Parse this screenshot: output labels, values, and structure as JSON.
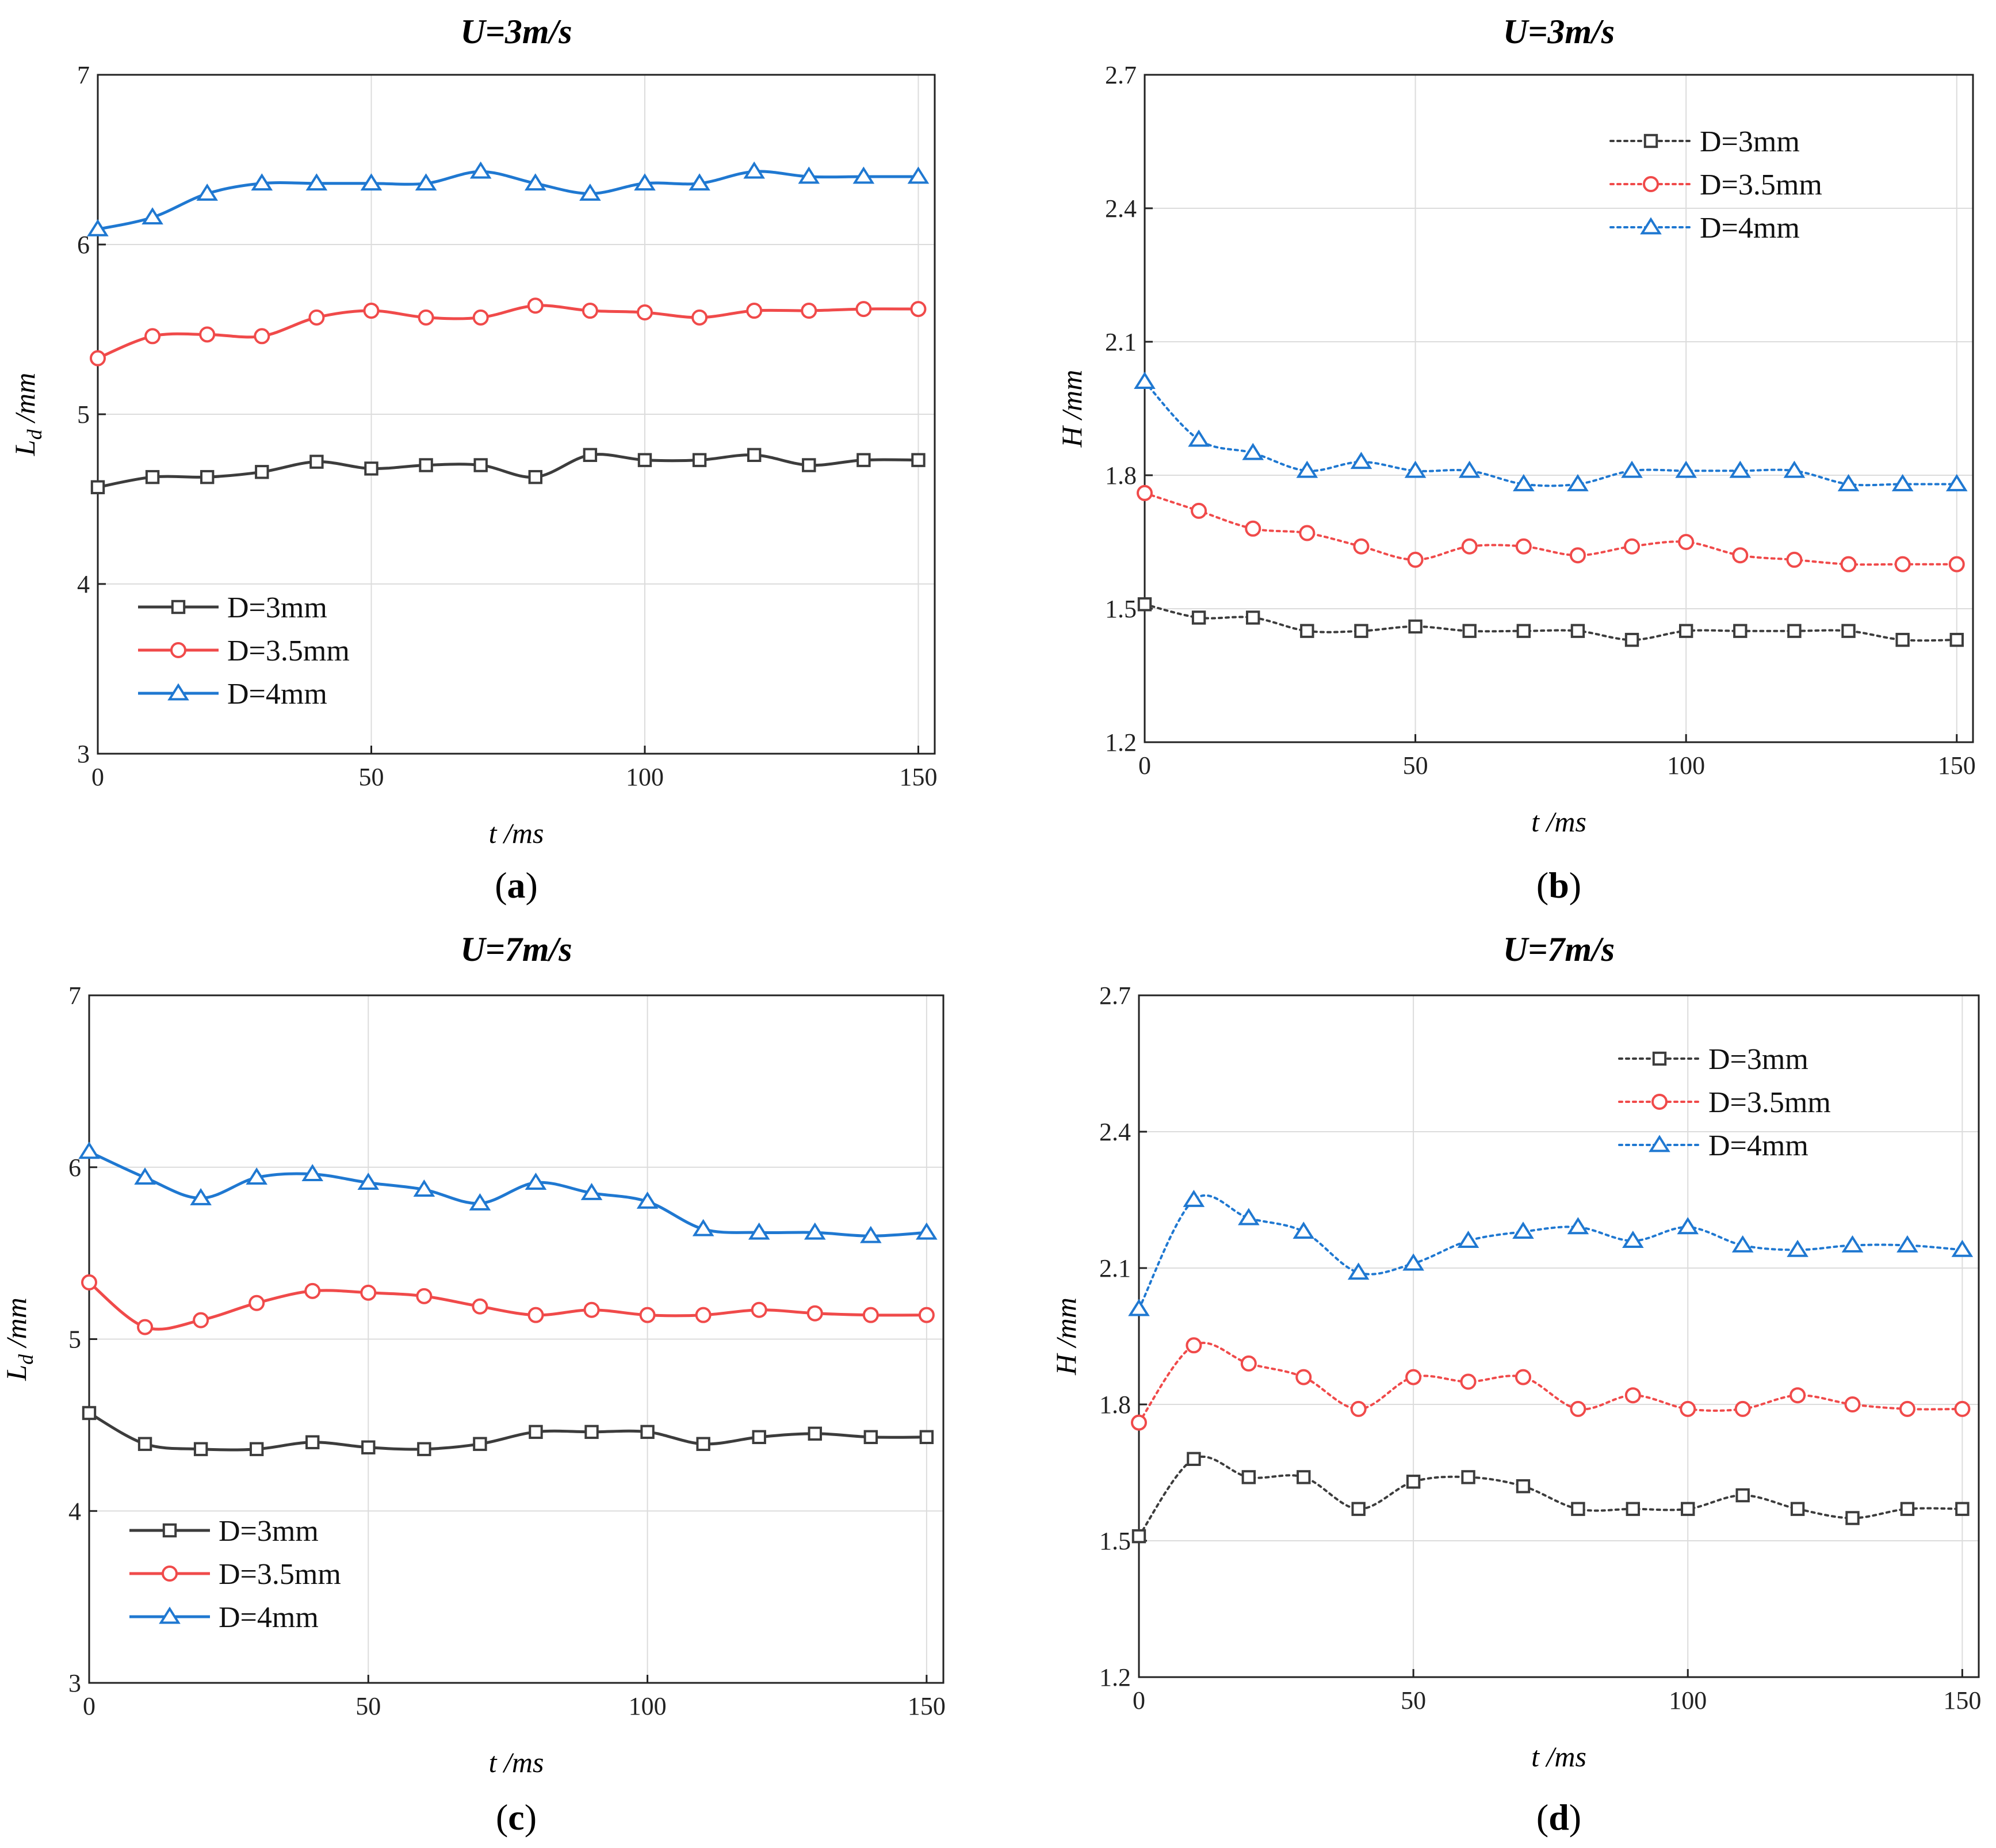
{
  "chart_data": [
    {
      "id": "a",
      "type": "line",
      "panel_label": "a",
      "title": "U=3m/s",
      "xlabel": "t /ms",
      "ylabel": "L",
      "ylabel_sub": "d",
      "ylabel_unit": " /mm",
      "xlim": [
        0,
        153
      ],
      "ylim": [
        3,
        7
      ],
      "xticks": [
        0,
        50,
        100,
        150
      ],
      "yticks": [
        3,
        4,
        5,
        6,
        7
      ],
      "grid": true,
      "legend_position": "bottom-left",
      "x": [
        0,
        10,
        20,
        30,
        40,
        50,
        60,
        70,
        80,
        90,
        100,
        110,
        120,
        130,
        140,
        150
      ],
      "series": [
        {
          "name": "D=3mm",
          "color": "#3c3c3c",
          "marker": "square",
          "line": "solid",
          "values": [
            4.57,
            4.63,
            4.63,
            4.66,
            4.72,
            4.68,
            4.7,
            4.7,
            4.63,
            4.76,
            4.73,
            4.73,
            4.76,
            4.7,
            4.73,
            4.73
          ]
        },
        {
          "name": "D=3.5mm",
          "color": "#f04a4a",
          "marker": "circle",
          "line": "solid",
          "values": [
            5.33,
            5.46,
            5.47,
            5.46,
            5.57,
            5.61,
            5.57,
            5.57,
            5.64,
            5.61,
            5.6,
            5.57,
            5.61,
            5.61,
            5.62,
            5.62
          ]
        },
        {
          "name": "D=4mm",
          "color": "#1f78d1",
          "marker": "triangle",
          "line": "solid",
          "values": [
            6.09,
            6.16,
            6.3,
            6.36,
            6.36,
            6.36,
            6.36,
            6.43,
            6.36,
            6.3,
            6.36,
            6.36,
            6.43,
            6.4,
            6.4,
            6.4
          ]
        }
      ]
    },
    {
      "id": "b",
      "type": "line",
      "panel_label": "b",
      "title": "U=3m/s",
      "xlabel": "t /ms",
      "ylabel": "H",
      "ylabel_sub": "",
      "ylabel_unit": " /mm",
      "xlim": [
        0,
        153
      ],
      "ylim": [
        1.2,
        2.7
      ],
      "xticks": [
        0,
        50,
        100,
        150
      ],
      "yticks": [
        1.2,
        1.5,
        1.8,
        2.1,
        2.4,
        2.7
      ],
      "grid": true,
      "legend_position": "top-right",
      "x": [
        0,
        10,
        20,
        30,
        40,
        50,
        60,
        70,
        80,
        90,
        100,
        110,
        120,
        130,
        140,
        150
      ],
      "series": [
        {
          "name": "D=3mm",
          "color": "#3c3c3c",
          "marker": "square",
          "line": "dotted",
          "values": [
            1.51,
            1.48,
            1.48,
            1.45,
            1.45,
            1.46,
            1.45,
            1.45,
            1.45,
            1.43,
            1.45,
            1.45,
            1.45,
            1.45,
            1.43,
            1.43
          ]
        },
        {
          "name": "D=3.5mm",
          "color": "#f04a4a",
          "marker": "circle",
          "line": "dotted",
          "values": [
            1.76,
            1.72,
            1.68,
            1.67,
            1.64,
            1.61,
            1.64,
            1.64,
            1.62,
            1.64,
            1.65,
            1.62,
            1.61,
            1.6,
            1.6,
            1.6
          ]
        },
        {
          "name": "D=4mm",
          "color": "#1f78d1",
          "marker": "triangle",
          "line": "dotted",
          "values": [
            2.01,
            1.88,
            1.85,
            1.81,
            1.83,
            1.81,
            1.81,
            1.78,
            1.78,
            1.81,
            1.81,
            1.81,
            1.81,
            1.78,
            1.78,
            1.78
          ]
        }
      ]
    },
    {
      "id": "c",
      "type": "line",
      "panel_label": "c",
      "title": "U=7m/s",
      "xlabel": "t /ms",
      "ylabel": "L",
      "ylabel_sub": "d",
      "ylabel_unit": " /mm",
      "xlim": [
        0,
        153
      ],
      "ylim": [
        3,
        7
      ],
      "xticks": [
        0,
        50,
        100,
        150
      ],
      "yticks": [
        3,
        4,
        5,
        6,
        7
      ],
      "grid": true,
      "legend_position": "bottom-left",
      "x": [
        0,
        10,
        20,
        30,
        40,
        50,
        60,
        70,
        80,
        90,
        100,
        110,
        120,
        130,
        140,
        150
      ],
      "series": [
        {
          "name": "D=3mm",
          "color": "#3c3c3c",
          "marker": "square",
          "line": "solid",
          "values": [
            4.57,
            4.39,
            4.36,
            4.36,
            4.4,
            4.37,
            4.36,
            4.39,
            4.46,
            4.46,
            4.46,
            4.39,
            4.43,
            4.45,
            4.43,
            4.43
          ]
        },
        {
          "name": "D=3.5mm",
          "color": "#f04a4a",
          "marker": "circle",
          "line": "solid",
          "values": [
            5.33,
            5.07,
            5.11,
            5.21,
            5.28,
            5.27,
            5.25,
            5.19,
            5.14,
            5.17,
            5.14,
            5.14,
            5.17,
            5.15,
            5.14,
            5.14
          ]
        },
        {
          "name": "D=4mm",
          "color": "#1f78d1",
          "marker": "triangle",
          "line": "solid",
          "values": [
            6.09,
            5.94,
            5.82,
            5.94,
            5.96,
            5.91,
            5.87,
            5.79,
            5.91,
            5.85,
            5.8,
            5.64,
            5.62,
            5.62,
            5.6,
            5.62
          ]
        }
      ]
    },
    {
      "id": "d",
      "type": "line",
      "panel_label": "d",
      "title": "U=7m/s",
      "xlabel": "t /ms",
      "ylabel": "H",
      "ylabel_sub": "",
      "ylabel_unit": " /mm",
      "xlim": [
        0,
        153
      ],
      "ylim": [
        1.2,
        2.7
      ],
      "xticks": [
        0,
        50,
        100,
        150
      ],
      "yticks": [
        1.2,
        1.5,
        1.8,
        2.1,
        2.4,
        2.7
      ],
      "grid": true,
      "legend_position": "top-right",
      "x": [
        0,
        10,
        20,
        30,
        40,
        50,
        60,
        70,
        80,
        90,
        100,
        110,
        120,
        130,
        140,
        150
      ],
      "series": [
        {
          "name": "D=3mm",
          "color": "#3c3c3c",
          "marker": "square",
          "line": "dotted",
          "values": [
            1.51,
            1.68,
            1.64,
            1.64,
            1.57,
            1.63,
            1.64,
            1.62,
            1.57,
            1.57,
            1.57,
            1.6,
            1.57,
            1.55,
            1.57,
            1.57
          ]
        },
        {
          "name": "D=3.5mm",
          "color": "#f04a4a",
          "marker": "circle",
          "line": "dotted",
          "values": [
            1.76,
            1.93,
            1.89,
            1.86,
            1.79,
            1.86,
            1.85,
            1.86,
            1.79,
            1.82,
            1.79,
            1.79,
            1.82,
            1.8,
            1.79,
            1.79
          ]
        },
        {
          "name": "D=4mm",
          "color": "#1f78d1",
          "marker": "triangle",
          "line": "dotted",
          "values": [
            2.01,
            2.25,
            2.21,
            2.18,
            2.09,
            2.11,
            2.16,
            2.18,
            2.19,
            2.16,
            2.19,
            2.15,
            2.14,
            2.15,
            2.15,
            2.14
          ]
        }
      ]
    }
  ]
}
